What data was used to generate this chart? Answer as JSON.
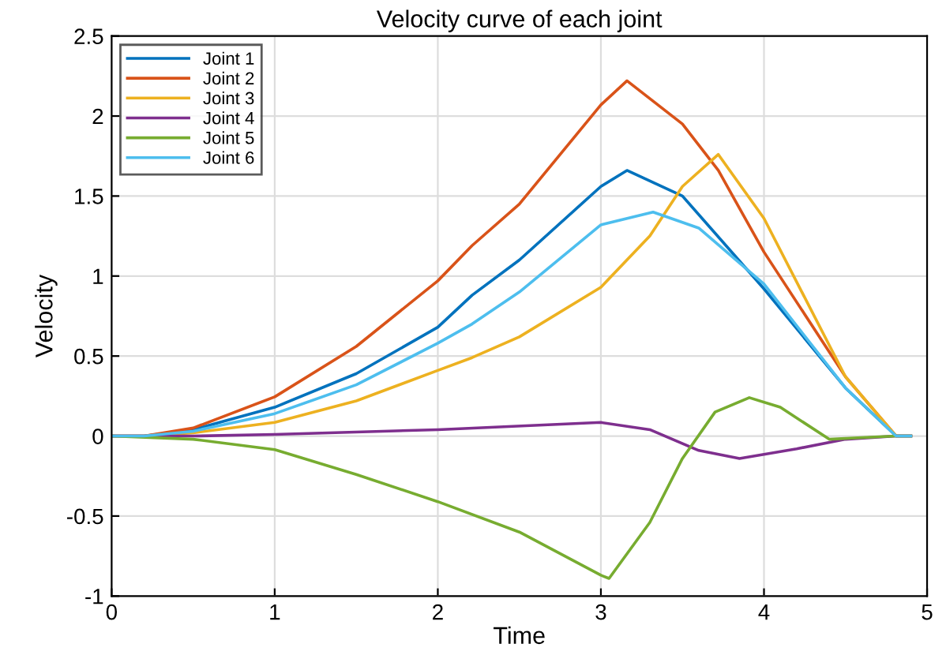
{
  "chart_data": {
    "type": "line",
    "title": "Velocity curve of each joint",
    "xlabel": "Time",
    "ylabel": "Velocity",
    "xlim": [
      0,
      5
    ],
    "ylim": [
      -1,
      2.5
    ],
    "xticks": [
      0,
      1,
      2,
      3,
      4,
      5
    ],
    "yticks": [
      -1,
      -0.5,
      0,
      0.5,
      1,
      1.5,
      2,
      2.5
    ],
    "grid": true,
    "legend": "top left",
    "line_style": "solid",
    "marker": "none",
    "series": [
      {
        "name": "Joint 1",
        "color": "#0072bd",
        "x": [
          0,
          0.2,
          0.5,
          1,
          1.5,
          2,
          2.21,
          2.5,
          3,
          3.16,
          3.5,
          4,
          4.5,
          4.81,
          4.9
        ],
        "values": [
          0,
          0,
          0.04,
          0.18,
          0.39,
          0.68,
          0.88,
          1.1,
          1.56,
          1.66,
          1.5,
          0.92,
          0.3,
          0,
          0
        ]
      },
      {
        "name": "Joint 2",
        "color": "#d95319",
        "x": [
          0,
          0.2,
          0.5,
          1,
          1.5,
          2,
          2.21,
          2.5,
          3,
          3.16,
          3.5,
          3.72,
          4,
          4.5,
          4.81,
          4.9
        ],
        "values": [
          0,
          0,
          0.05,
          0.245,
          0.56,
          0.97,
          1.19,
          1.45,
          2.07,
          2.22,
          1.95,
          1.66,
          1.15,
          0.37,
          0,
          0
        ]
      },
      {
        "name": "Joint 3",
        "color": "#edb120",
        "x": [
          0,
          0.2,
          0.5,
          1,
          1.5,
          2,
          2.21,
          2.5,
          3,
          3.3,
          3.5,
          3.72,
          4,
          4.5,
          4.81,
          4.9
        ],
        "values": [
          0,
          0,
          0.02,
          0.085,
          0.22,
          0.41,
          0.49,
          0.62,
          0.93,
          1.25,
          1.56,
          1.76,
          1.36,
          0.37,
          0,
          0
        ]
      },
      {
        "name": "Joint 4",
        "color": "#7e2f8e",
        "x": [
          0,
          0.5,
          1,
          2,
          3,
          3.3,
          3.6,
          3.85,
          4.2,
          4.5,
          4.81,
          4.9
        ],
        "values": [
          0,
          0,
          0.01,
          0.04,
          0.085,
          0.04,
          -0.09,
          -0.14,
          -0.08,
          -0.02,
          0,
          0
        ]
      },
      {
        "name": "Joint 5",
        "color": "#77ac30",
        "x": [
          0,
          0.5,
          1,
          1.5,
          2,
          2.5,
          3,
          3.05,
          3.3,
          3.5,
          3.7,
          3.91,
          4.1,
          4.4,
          4.6,
          4.81,
          4.9
        ],
        "values": [
          0,
          -0.02,
          -0.085,
          -0.24,
          -0.41,
          -0.6,
          -0.87,
          -0.89,
          -0.54,
          -0.14,
          0.15,
          0.24,
          0.18,
          -0.02,
          -0.01,
          0,
          0
        ]
      },
      {
        "name": "Joint 6",
        "color": "#4dbeee",
        "x": [
          0,
          0.2,
          0.5,
          1,
          1.5,
          2,
          2.21,
          2.5,
          3,
          3.32,
          3.6,
          4,
          4.5,
          4.81,
          4.9
        ],
        "values": [
          0,
          0,
          0.03,
          0.14,
          0.32,
          0.58,
          0.7,
          0.9,
          1.32,
          1.4,
          1.3,
          0.95,
          0.3,
          0,
          0
        ]
      }
    ]
  }
}
